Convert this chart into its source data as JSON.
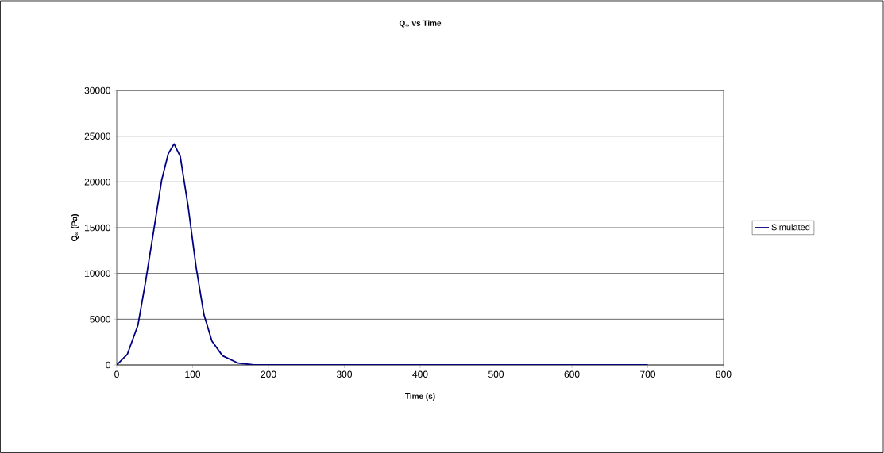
{
  "chart_data": {
    "type": "line",
    "title": "Q$_{∞}$ vs Time",
    "xlabel": "Time (s)",
    "ylabel": "Q$_{∞}$ (Pa)",
    "x": [
      0,
      13.9,
      27.9,
      38.3,
      48.8,
      59.2,
      68,
      75.6,
      83.7,
      94.1,
      104.6,
      115,
      125.5,
      139.4,
      160,
      181,
      300,
      500,
      700
    ],
    "series": [
      {
        "name": "Simulated",
        "color": "#000080",
        "values": [
          0,
          1150,
          4330,
          9240,
          14720,
          20200,
          23100,
          24160,
          22800,
          17320,
          10680,
          5480,
          2600,
          1010,
          200,
          0,
          0,
          0,
          0
        ]
      }
    ],
    "xlim": [
      0,
      800
    ],
    "ylim": [
      0,
      30000
    ],
    "xticks": [
      0,
      100,
      200,
      300,
      400,
      500,
      600,
      700,
      800
    ],
    "yticks": [
      0,
      5000,
      10000,
      15000,
      20000,
      25000,
      30000
    ],
    "grid": "y",
    "legend": "right",
    "marker": "none",
    "line_style": "solid"
  }
}
